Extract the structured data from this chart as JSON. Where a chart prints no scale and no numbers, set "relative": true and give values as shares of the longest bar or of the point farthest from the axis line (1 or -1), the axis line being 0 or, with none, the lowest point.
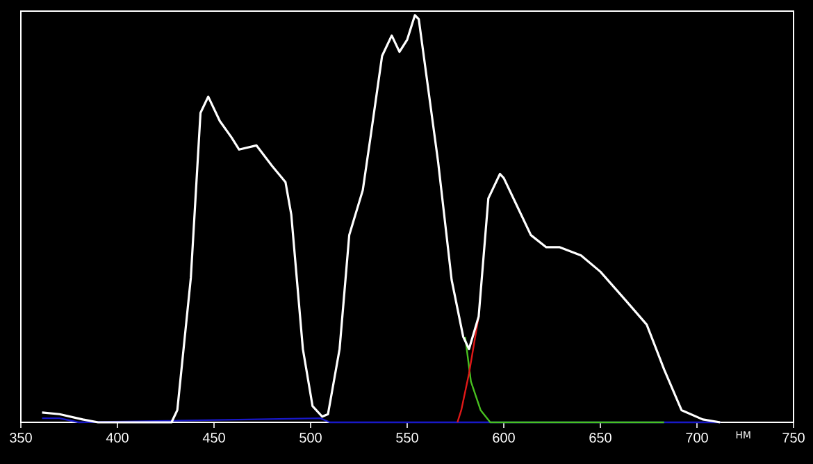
{
  "chart_data": {
    "type": "line",
    "relative": true,
    "xlabel": "НМ",
    "xlim": [
      350,
      750
    ],
    "xticks": [
      350,
      400,
      450,
      500,
      550,
      600,
      650,
      700,
      750
    ],
    "tick_labels": "x",
    "series": [
      {
        "color": "#ffffff",
        "x": [
          361,
          370,
          382,
          390,
          428,
          431,
          438,
          443,
          447,
          453,
          459,
          463,
          472,
          480,
          487,
          490,
          496,
          501,
          506,
          509,
          515,
          520,
          527,
          531,
          537,
          542,
          546,
          550,
          554,
          556,
          566,
          573,
          579,
          582,
          587,
          592,
          598,
          600,
          606,
          614,
          622,
          629,
          640,
          650,
          663,
          674,
          683,
          692,
          703,
          712
        ],
        "values": [
          0.024,
          0.02,
          0.007,
          0,
          0,
          0.03,
          0.355,
          0.76,
          0.8,
          0.74,
          0.7,
          0.67,
          0.68,
          0.63,
          0.59,
          0.51,
          0.18,
          0.04,
          0.014,
          0.02,
          0.18,
          0.46,
          0.57,
          0.7,
          0.9,
          0.95,
          0.91,
          0.94,
          1.0,
          0.99,
          0.64,
          0.35,
          0.21,
          0.18,
          0.26,
          0.55,
          0.61,
          0.6,
          0.54,
          0.46,
          0.43,
          0.43,
          0.41,
          0.37,
          0.3,
          0.24,
          0.13,
          0.03,
          0.007,
          0
        ]
      },
      {
        "color": "#e01818",
        "x": [
          576,
          578,
          582,
          587
        ],
        "values": [
          0,
          0.03,
          0.12,
          0.26
        ]
      },
      {
        "color": "#48c020",
        "x": [
          580,
          583,
          588,
          593,
          602,
          630,
          683
        ],
        "values": [
          0.21,
          0.1,
          0.03,
          0,
          0,
          0,
          0
        ]
      },
      {
        "color": "#1818c8",
        "x": [
          361,
          370,
          380,
          505,
          510,
          712
        ],
        "values": [
          0.01,
          0.01,
          0,
          0.01,
          0,
          0
        ]
      }
    ]
  }
}
